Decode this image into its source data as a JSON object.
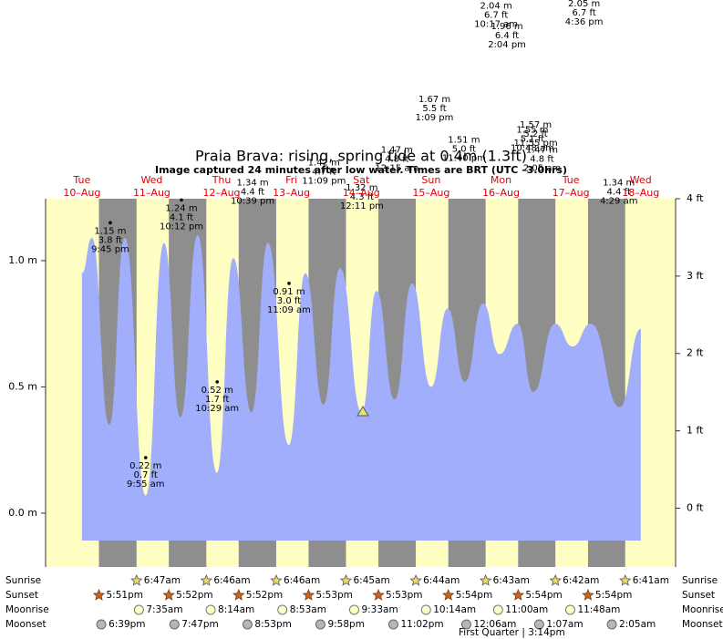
{
  "chart_data": {
    "type": "area",
    "title": "Praia Brava: rising, spring tide at 0.4m (1.3ft)",
    "subtitle": "Image captured 24 minutes after low water. Times are BRT (UTC –3.0hrs)",
    "days": [
      {
        "weekday": "Tue",
        "date": "10–Aug"
      },
      {
        "weekday": "Wed",
        "date": "11–Aug"
      },
      {
        "weekday": "Thu",
        "date": "12–Aug"
      },
      {
        "weekday": "Fri",
        "date": "13–Aug"
      },
      {
        "weekday": "Sat",
        "date": "14–Aug"
      },
      {
        "weekday": "Sun",
        "date": "15–Aug"
      },
      {
        "weekday": "Mon",
        "date": "16–Aug"
      },
      {
        "weekday": "Tue",
        "date": "17–Aug"
      },
      {
        "weekday": "Wed",
        "date": "18–Aug"
      }
    ],
    "day_label_color": "#e00000",
    "day_color": "#ffffc4",
    "night_color": "#8e8e8e",
    "xlim": [
      -0.02,
      9.0
    ],
    "ylim": [
      -0.213,
      1.245
    ],
    "yticks": [
      {
        "value": 0,
        "label": "0.0 m"
      },
      {
        "value": 0.5,
        "label": "0.5 m"
      },
      {
        "value": 1,
        "label": "1.0 m"
      }
    ],
    "y2lim": [
      -0.76,
      4.0
    ],
    "y2ticks": [
      {
        "value": 0,
        "label": "0 ft"
      },
      {
        "value": 1,
        "label": "1 ft"
      },
      {
        "value": 2,
        "label": "2 ft"
      },
      {
        "value": 3,
        "label": "3 ft"
      },
      {
        "value": 4,
        "label": "4 ft"
      }
    ],
    "series": [
      {
        "color": "#a0aefc",
        "x": [
          0.5,
          0.644,
          0.892,
          1.114,
          1.414,
          1.675,
          1.91,
          2.158,
          2.432,
          2.667,
          2.928,
          3.163,
          3.463,
          3.698,
          3.959,
          4.194,
          4.508,
          4.717,
          4.978,
          5.226,
          5.5,
          5.735,
          5.983,
          6.244,
          6.479,
          6.74,
          6.962,
          7.275,
          7.524,
          7.785,
          8.202,
          8.502
        ],
        "values": [
          0.95,
          1.09,
          0.35,
          1.09,
          0.07,
          1.07,
          0.38,
          1.1,
          0.16,
          1.01,
          0.4,
          1.07,
          0.27,
          0.95,
          0.43,
          0.97,
          0.4,
          0.88,
          0.45,
          0.91,
          0.5,
          0.81,
          0.52,
          0.83,
          0.63,
          0.75,
          0.48,
          0.75,
          0.66,
          0.75,
          0.42,
          0.73
        ]
      }
    ],
    "annotations": [
      {
        "x": 0.906,
        "value": 1.15,
        "lines": [
          "1.15 m",
          "3.8 ft",
          "9:45 pm"
        ]
      },
      {
        "x": 1.413,
        "value": 0.22,
        "lines": [
          "0.22 m",
          "0.7 ft",
          "9:55 am"
        ]
      },
      {
        "x": 1.925,
        "value": 1.24,
        "lines": [
          "1.24 m",
          "4.1 ft",
          "10:12 pm"
        ]
      },
      {
        "x": 2.437,
        "value": 0.52,
        "lines": [
          "0.52 m",
          "1.7 ft",
          "10:29 am"
        ]
      },
      {
        "x": 2.944,
        "value": 1.34,
        "lines": [
          "1.34 m",
          "4.4 ft",
          "10:39 pm"
        ]
      },
      {
        "x": 3.465,
        "value": 0.91,
        "lines": [
          "0.91 m",
          "3.0 ft",
          "11:09 am"
        ]
      },
      {
        "x": 3.965,
        "value": 1.42,
        "lines": [
          "1.42 m",
          "4.7 ft",
          "11:09 pm"
        ]
      },
      {
        "x": 4.508,
        "value": 1.32,
        "lines": [
          "1.32 m",
          "4.3 ft",
          "12:11 pm"
        ]
      },
      {
        "x": 5.01,
        "value": 1.47,
        "lines": [
          "1.47 m",
          "4.8 ft",
          "12:15 am"
        ]
      },
      {
        "x": 5.548,
        "value": 1.67,
        "lines": [
          "1.67 m",
          "5.5 ft",
          "1:09 pm"
        ]
      },
      {
        "x": 5.97,
        "value": 1.51,
        "lines": [
          "1.51 m",
          "5.0 ft",
          "11:40 pm"
        ]
      },
      {
        "x": 6.43,
        "value": 2.04,
        "lines": [
          "2.04 m",
          "6.7 ft",
          "10:17 am"
        ]
      },
      {
        "x": 6.586,
        "value": 1.96,
        "lines": [
          "1.96 m",
          "6.4 ft",
          "2:04 pm"
        ]
      },
      {
        "x": 6.997,
        "value": 1.57,
        "lines": [
          "1.57 m",
          "5.2 ft",
          "11:55 pm"
        ]
      },
      {
        "x": 6.95,
        "value": 1.55,
        "lines": [
          "1.55 m",
          "5.1 ft",
          "10:48 am"
        ]
      },
      {
        "x": 7.087,
        "value": 1.47,
        "lines": [
          "1.47 m",
          "4.8 ft",
          "2:05 am"
        ]
      },
      {
        "x": 7.69,
        "value": 2.05,
        "lines": [
          "2.05 m",
          "6.7 ft",
          "4:36 pm"
        ]
      },
      {
        "x": 8.187,
        "value": 1.34,
        "lines": [
          "1.34 m",
          "4.4 ft",
          "4:29 am"
        ]
      }
    ],
    "almanac": [
      {
        "label": "Sunrise",
        "times": [
          null,
          "6:47am",
          "6:46am",
          "6:46am",
          "6:45am",
          "6:44am",
          "6:43am",
          "6:42am",
          "6:41am"
        ]
      },
      {
        "label": "Sunset",
        "times": [
          "5:51pm",
          "5:52pm",
          "5:52pm",
          "5:53pm",
          "5:53pm",
          "5:54pm",
          "5:54pm",
          "5:54pm",
          null
        ]
      },
      {
        "label": "Moonrise",
        "times": [
          null,
          "7:35am",
          "8:14am",
          "8:53am",
          "9:33am",
          "10:14am",
          "11:00am",
          "11:48am",
          null
        ]
      },
      {
        "label": "Moonset",
        "times": [
          "6:39pm",
          "7:47pm",
          "8:53pm",
          "9:58pm",
          "11:02pm",
          null,
          "12:06am",
          "1:07am",
          "2:05am"
        ]
      }
    ],
    "moon_phase": "First Quarter | 3:14pm"
  }
}
